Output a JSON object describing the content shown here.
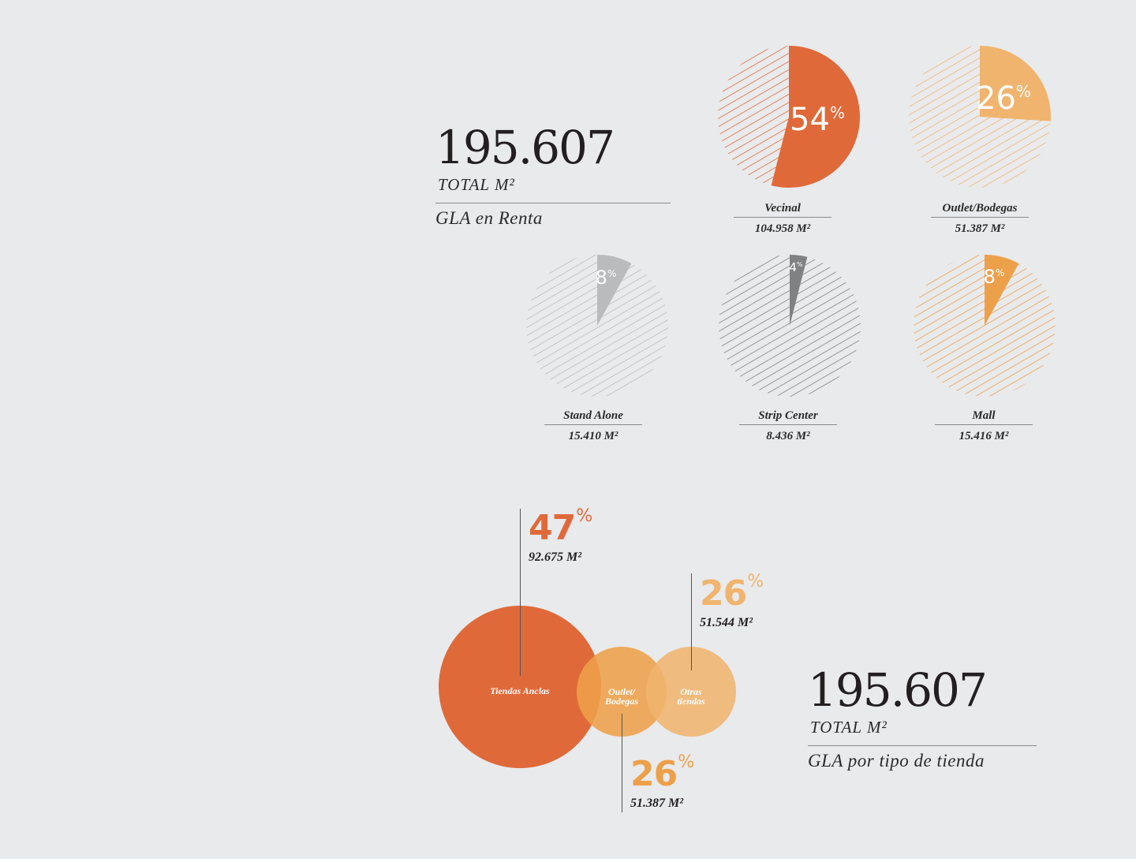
{
  "gla_renta": {
    "total_number": "195.607",
    "total_unit": "TOTAL M²",
    "caption": "GLA en Renta"
  },
  "gla_tipo": {
    "total_number": "195.607",
    "total_unit": "TOTAL M²",
    "caption": "GLA por tipo de tienda"
  },
  "colors": {
    "orange_dark": "#e0693a",
    "orange_light": "#f0b46e",
    "orange_mid": "#eda04a",
    "gray_light": "#b9bbbd",
    "gray_dark": "#7f8183",
    "background": "#e9eaec"
  },
  "chart_data": [
    {
      "type": "pie",
      "slices": [
        {
          "name": "Vecinal",
          "value": 54,
          "label": "54",
          "area": "104.958 M²",
          "color": "#e0693a"
        },
        {
          "name": "Outlet/Bodegas",
          "value": 26,
          "label": "26",
          "area": "51.387 M²",
          "color": "#f0b46e"
        },
        {
          "name": "Stand Alone",
          "value": 8,
          "label": "8",
          "area": "15.410 M²",
          "color": "#b9bbbd"
        },
        {
          "name": "Strip Center",
          "value": 4,
          "label": "4",
          "area": "8.436  M²",
          "color": "#7f8183"
        },
        {
          "name": "Mall",
          "value": 8,
          "label": "8",
          "area": "15.416 M²",
          "color": "#eda04a"
        }
      ],
      "percent_symbol": "%"
    },
    {
      "type": "venn",
      "sets": [
        {
          "name": "Tiendas Anclas",
          "value": 47,
          "label": "47",
          "area": "92.675 M²",
          "color": "#e0693a"
        },
        {
          "name": "Outlet/ Bodegas",
          "line1": "Outlet/",
          "line2": "Bodegas",
          "value": 26,
          "label": "26",
          "area": "51.387 M²",
          "color": "#eda04a"
        },
        {
          "name": "Otras tiendas",
          "line1": "Otras",
          "line2": "tiendas",
          "value": 26,
          "label": "26",
          "area": "51.544 M²",
          "color": "#f0b46e"
        }
      ],
      "percent_symbol": "%"
    }
  ]
}
